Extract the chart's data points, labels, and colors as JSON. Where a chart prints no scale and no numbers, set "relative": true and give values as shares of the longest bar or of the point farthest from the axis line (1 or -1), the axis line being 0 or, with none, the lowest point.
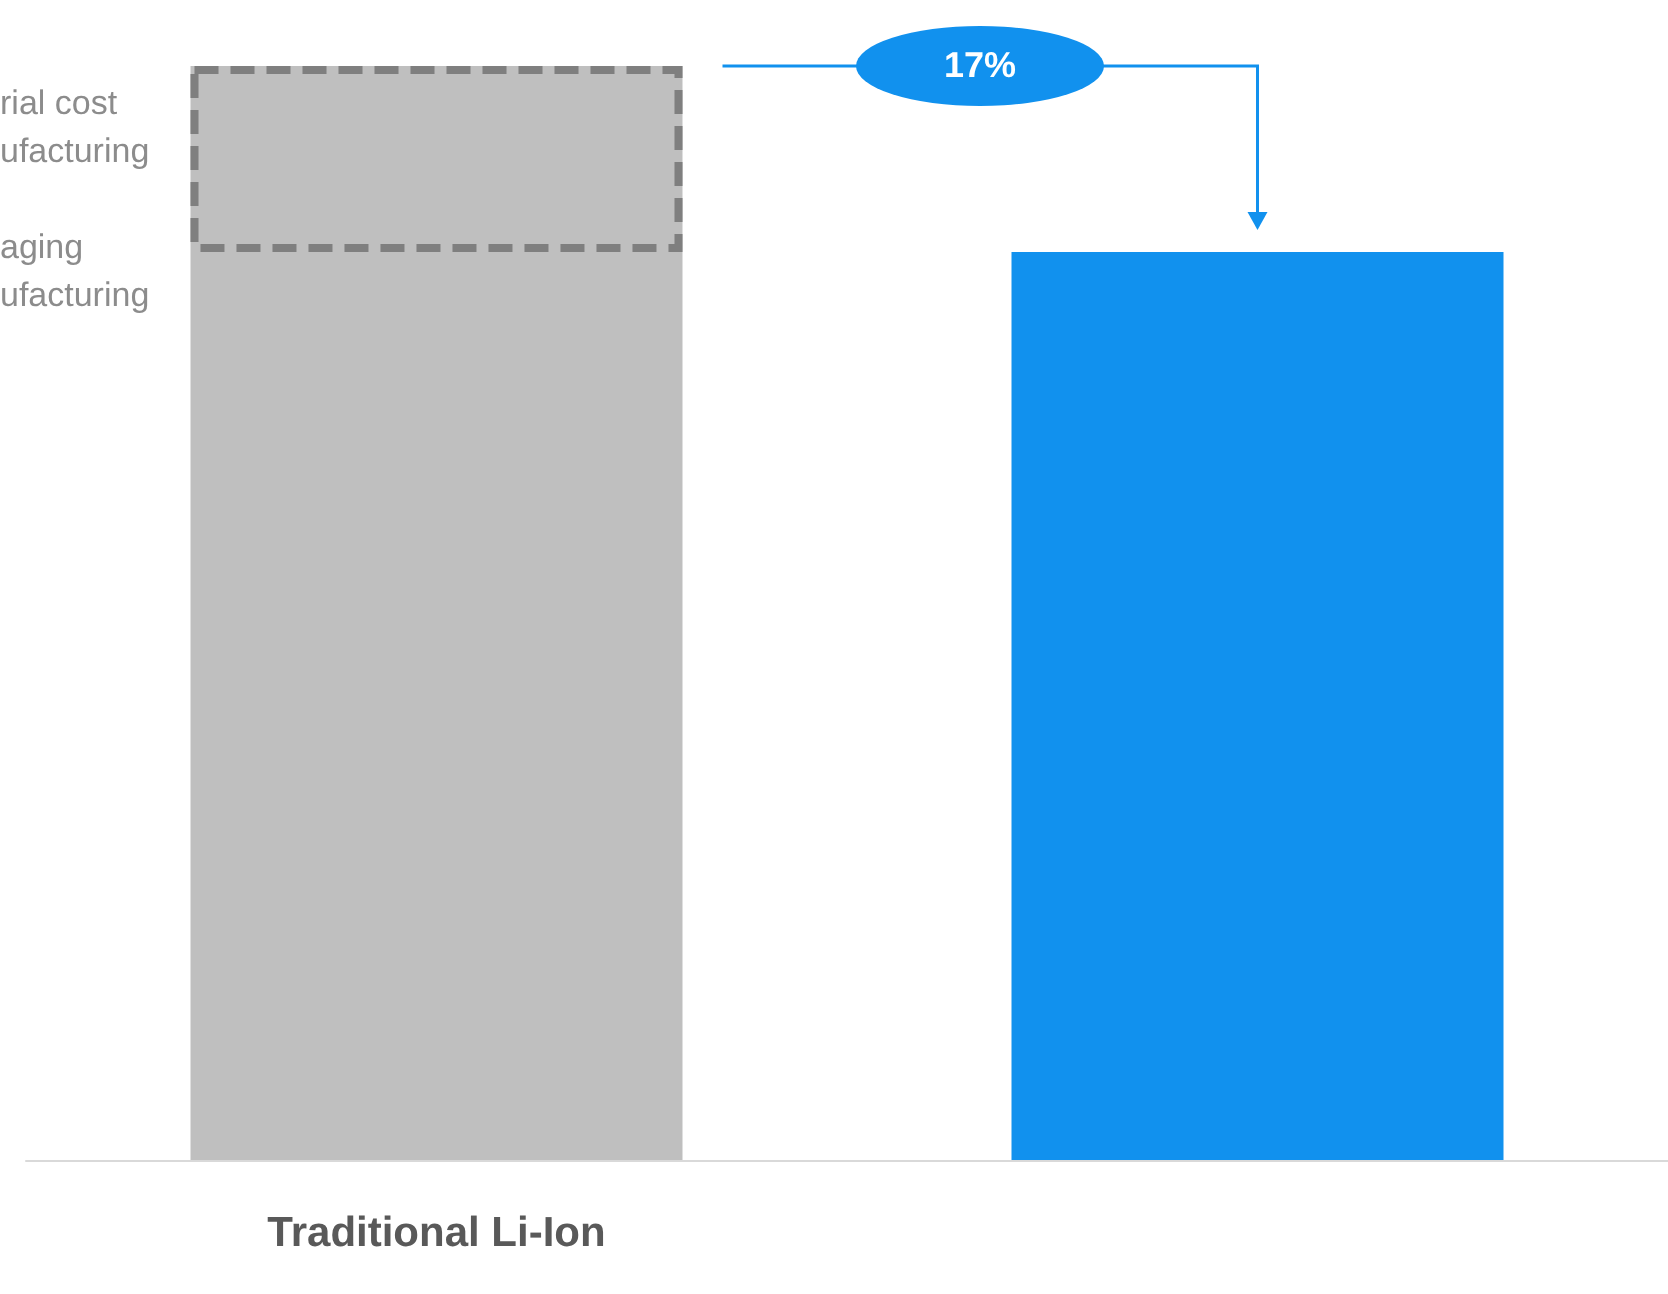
{
  "chart_data": {
    "type": "bar",
    "categories": [
      "Traditional Li-Ion",
      null
    ],
    "values": [
      1,
      0.83
    ],
    "colors": [
      "#bfbfbf",
      "#1191ee"
    ],
    "relative": true,
    "annotations": [
      "rial cost",
      "ufacturing",
      "aging",
      "ufacturing",
      "17%"
    ]
  }
}
